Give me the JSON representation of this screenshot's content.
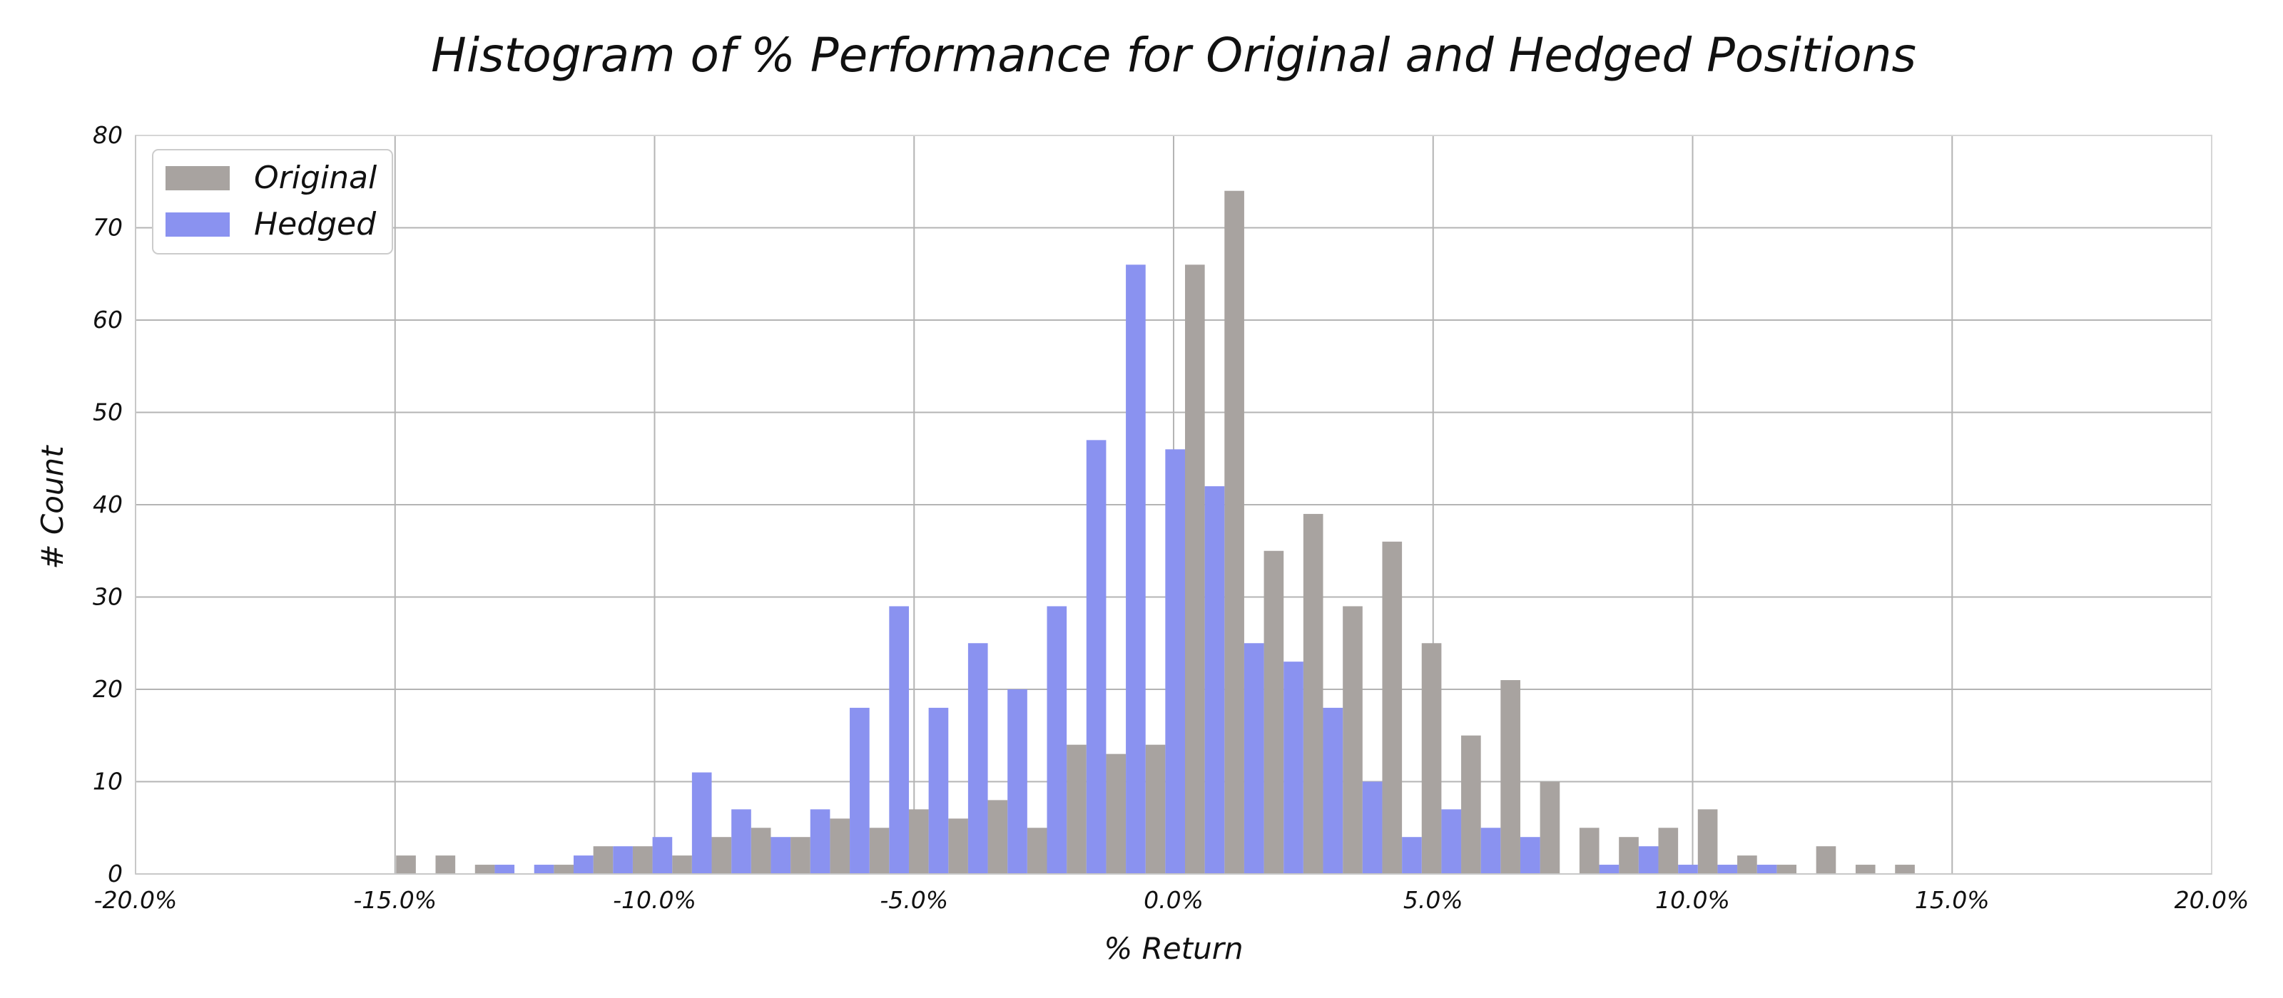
{
  "chart_data": {
    "type": "bar",
    "title": "Histogram of % Performance for Original and Hedged Positions",
    "xlabel": "% Return",
    "ylabel": "# Count",
    "xlim": [
      -20,
      20
    ],
    "ylim": [
      0,
      80
    ],
    "x_ticks": [
      -20,
      -15,
      -10,
      -5,
      0,
      5,
      10,
      15,
      20
    ],
    "x_tick_labels": [
      "-20.0%",
      "-15.0%",
      "-10.0%",
      "-5.0%",
      "0.0%",
      "5.0%",
      "10.0%",
      "15.0%",
      "20.0%"
    ],
    "y_ticks": [
      0,
      10,
      20,
      30,
      40,
      50,
      60,
      70,
      80
    ],
    "y_tick_labels": [
      "0",
      "10",
      "20",
      "30",
      "40",
      "50",
      "60",
      "70",
      "80"
    ],
    "grid": true,
    "legend_position": "top-left",
    "bin_width_pct": 0.76,
    "bin_starts_pct": [
      -15.36,
      -14.6,
      -13.84,
      -13.08,
      -12.32,
      -11.56,
      -10.8,
      -10.04,
      -9.28,
      -8.52,
      -7.76,
      -7.0,
      -6.24,
      -5.48,
      -4.72,
      -3.96,
      -3.2,
      -2.44,
      -1.68,
      -0.92,
      -0.16,
      0.6,
      1.36,
      2.12,
      2.88,
      3.64,
      4.4,
      5.16,
      5.92,
      6.68,
      7.44,
      8.2,
      8.96,
      9.72,
      10.48,
      11.24,
      12.0,
      12.76,
      13.52
    ],
    "series": [
      {
        "name": "Original",
        "color": "#a8a3a0",
        "values": [
          2,
          2,
          1,
          0,
          1,
          3,
          3,
          2,
          4,
          5,
          4,
          6,
          5,
          7,
          6,
          8,
          5,
          14,
          13,
          14,
          66,
          74,
          35,
          39,
          29,
          36,
          25,
          15,
          21,
          10,
          5,
          4,
          5,
          7,
          2,
          1,
          3,
          1,
          1
        ]
      },
      {
        "name": "Hedged",
        "color": "#8a92f0",
        "values": [
          0,
          0,
          0,
          1,
          1,
          2,
          3,
          4,
          11,
          7,
          4,
          7,
          18,
          29,
          18,
          25,
          20,
          29,
          47,
          66,
          46,
          42,
          25,
          23,
          18,
          10,
          4,
          7,
          5,
          4,
          0,
          1,
          3,
          1,
          1,
          1,
          0,
          0,
          0
        ]
      }
    ]
  }
}
